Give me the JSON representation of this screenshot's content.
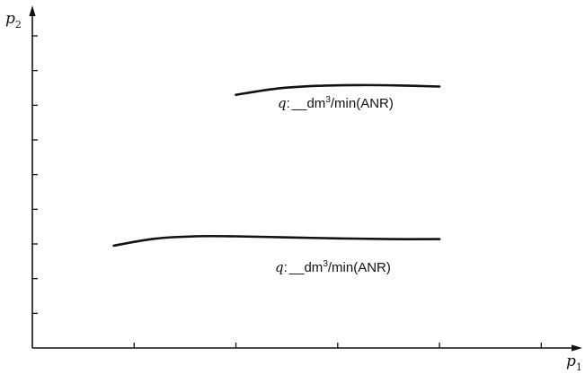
{
  "chart_data": {
    "type": "line",
    "title": "",
    "xlabel": {
      "main": "p",
      "sub": "1"
    },
    "ylabel": {
      "main": "p",
      "sub": "2"
    },
    "xlim": [
      0,
      5.2
    ],
    "ylim": [
      0,
      9.0
    ],
    "x_tick_count": 5,
    "y_tick_count": 9,
    "tick_labels": false,
    "grid": false,
    "series": [
      {
        "label": {
          "q": "q",
          "sep": ":",
          "blank": "__",
          "unit_pre": "dm",
          "unit_sup": "3",
          "unit_post": "/min(ANR)"
        },
        "x": [
          2.0,
          2.4,
          2.8,
          3.2,
          3.6,
          4.0
        ],
        "y": [
          7.3,
          7.48,
          7.56,
          7.58,
          7.57,
          7.54
        ]
      },
      {
        "label": {
          "q": "q",
          "sep": ":",
          "blank": "__",
          "unit_pre": "dm",
          "unit_sup": "3",
          "unit_post": "/min(ANR)"
        },
        "x": [
          0.8,
          1.2,
          1.6,
          2.0,
          2.5,
          3.0,
          3.5,
          4.0
        ],
        "y": [
          2.95,
          3.15,
          3.22,
          3.22,
          3.19,
          3.16,
          3.14,
          3.14
        ]
      }
    ]
  }
}
